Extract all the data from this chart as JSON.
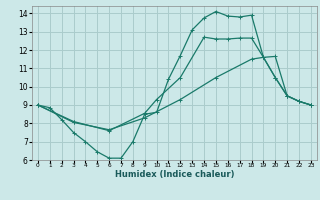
{
  "xlabel": "Humidex (Indice chaleur)",
  "bg_color": "#cce8e8",
  "grid_color": "#aacccc",
  "line_color": "#1a7a6a",
  "xlim": [
    -0.5,
    23.5
  ],
  "ylim": [
    6,
    14.4
  ],
  "xticks": [
    0,
    1,
    2,
    3,
    4,
    5,
    6,
    7,
    8,
    9,
    10,
    11,
    12,
    13,
    14,
    15,
    16,
    17,
    18,
    19,
    20,
    21,
    22,
    23
  ],
  "yticks": [
    6,
    7,
    8,
    9,
    10,
    11,
    12,
    13,
    14
  ],
  "line1_x": [
    0,
    1,
    2,
    3,
    4,
    5,
    6,
    7,
    8,
    9,
    10,
    11,
    12,
    13,
    14,
    15,
    16,
    17,
    18,
    19,
    20,
    21,
    22,
    23
  ],
  "line1_y": [
    9.0,
    8.85,
    8.2,
    7.5,
    7.0,
    6.45,
    6.1,
    6.1,
    7.0,
    8.5,
    8.6,
    10.4,
    11.7,
    13.1,
    13.75,
    14.1,
    13.85,
    13.8,
    13.9,
    11.6,
    10.5,
    9.5,
    9.2,
    9.0
  ],
  "line2_x": [
    0,
    3,
    6,
    9,
    10,
    12,
    14,
    15,
    16,
    17,
    18,
    19,
    20,
    21,
    22,
    23
  ],
  "line2_y": [
    9.0,
    8.1,
    7.6,
    8.55,
    9.3,
    10.5,
    12.7,
    12.6,
    12.6,
    12.65,
    12.65,
    11.6,
    10.5,
    9.5,
    9.2,
    9.0
  ],
  "line3_x": [
    0,
    3,
    6,
    9,
    12,
    15,
    18,
    19,
    20,
    21,
    22,
    23
  ],
  "line3_y": [
    9.0,
    8.05,
    7.65,
    8.3,
    9.3,
    10.5,
    11.5,
    11.6,
    11.65,
    9.5,
    9.2,
    9.0
  ]
}
